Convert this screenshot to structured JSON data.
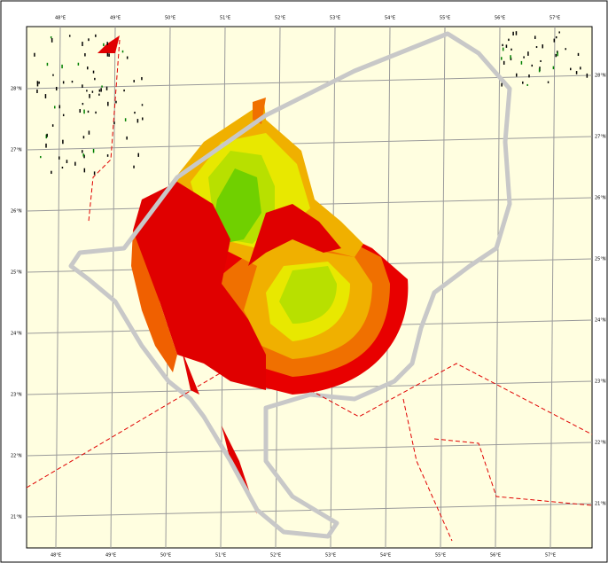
{
  "map": {
    "top_labels": [
      "48°E",
      "49°E",
      "50°E",
      "51°E",
      "52°E",
      "53°E",
      "54°E",
      "55°E",
      "56°E",
      "57°E"
    ],
    "bottom_labels": [
      "48°E",
      "49°E",
      "50°E",
      "51°E",
      "52°E",
      "53°E",
      "54°E",
      "55°E",
      "56°E",
      "57°E"
    ],
    "left_labels": [
      "28°N",
      "27°N",
      "26°N",
      "25°N",
      "24°N",
      "23°N",
      "22°N",
      "21°N"
    ],
    "right_labels": [
      "28°N",
      "27°N",
      "26°N",
      "25°N",
      "24°N",
      "23°N",
      "22°N",
      "21°N"
    ]
  }
}
